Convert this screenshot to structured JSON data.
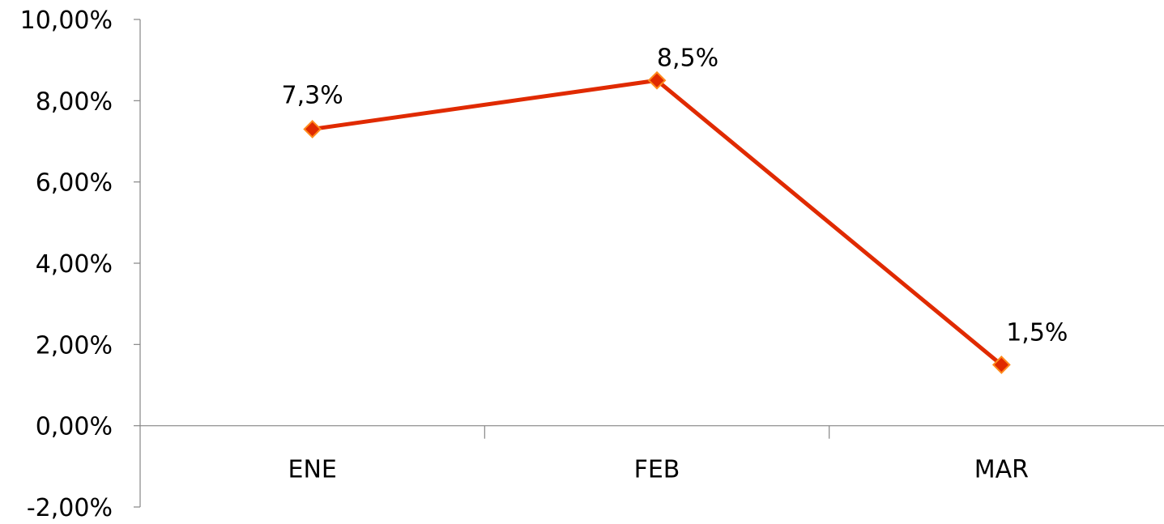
{
  "chart_data": {
    "type": "line",
    "categories": [
      "ENE",
      "FEB",
      "MAR"
    ],
    "series": [
      {
        "values": [
          7.3,
          8.5,
          1.5
        ],
        "data_labels": [
          "7,3%",
          "8,5%",
          "1,5%"
        ],
        "color": "#e02a00",
        "marker": "diamond",
        "marker_fill": "#e02a00",
        "marker_edge": "#ff8a1c"
      }
    ],
    "ylim": [
      -2,
      10
    ],
    "yticks": [
      10,
      8,
      6,
      4,
      2,
      0,
      -2
    ],
    "ytick_labels": [
      "10,00%",
      "8,00%",
      "6,00%",
      "4,00%",
      "2,00%",
      "0,00%",
      "-2,00%"
    ],
    "title": "",
    "xlabel": "",
    "ylabel": "",
    "grid": false,
    "legend": "none"
  }
}
